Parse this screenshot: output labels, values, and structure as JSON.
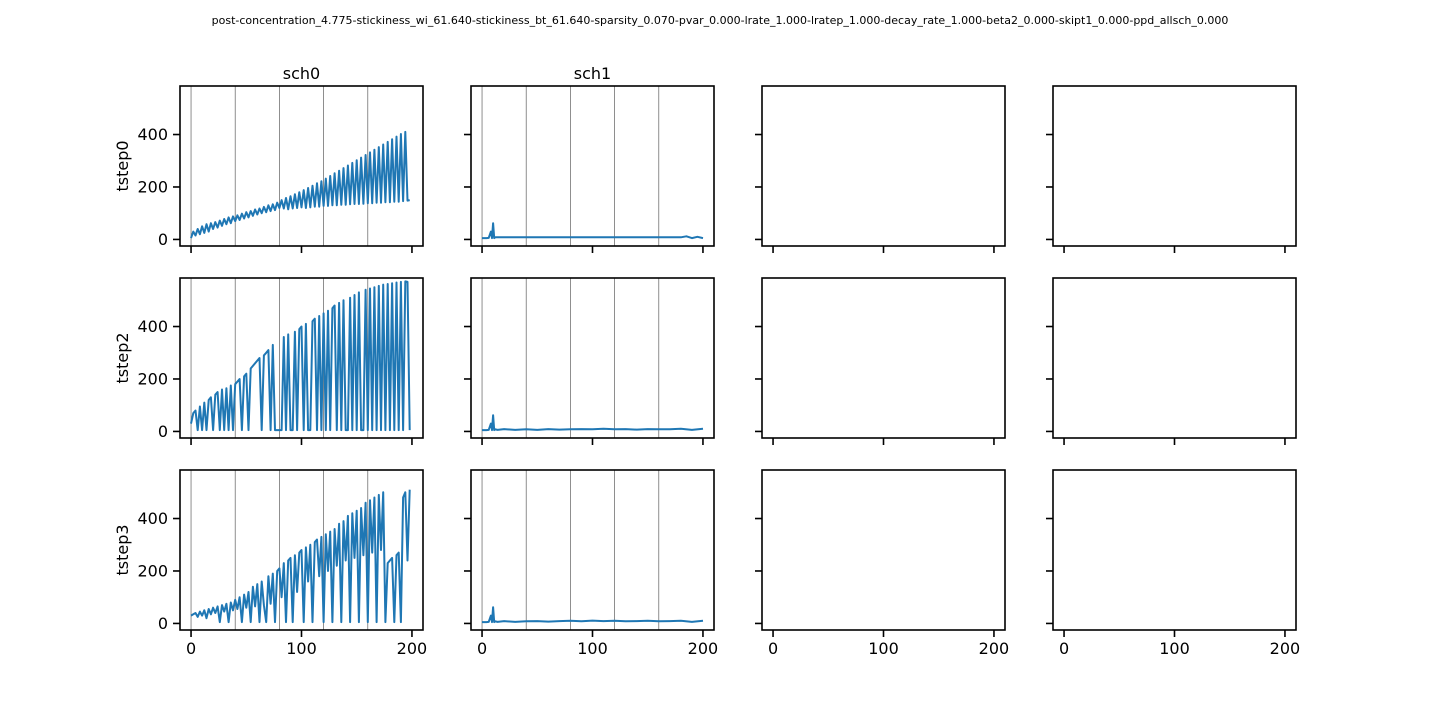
{
  "suptitle": "post-concentration_4.775-stickiness_wi_61.640-stickiness_bt_61.640-sparsity_0.070-pvar_0.000-lrate_1.000-lratep_1.000-decay_rate_1.000-beta2_0.000-skipt1_0.000-ppd_allsch_0.000",
  "colors": {
    "series": "#1f77b4",
    "axes": "#000000"
  },
  "chart_data": {
    "type": "line",
    "layout": "grid 3 rows x 4 columns, shared axes",
    "col_titles": [
      "sch0",
      "sch1",
      "",
      ""
    ],
    "row_labels": [
      "tstep0",
      "tstep2",
      "tstep3"
    ],
    "xlim": [
      -10,
      210
    ],
    "ylim": [
      -25,
      585
    ],
    "xticks": [
      0,
      100,
      200
    ],
    "xtick_labels": [
      "0",
      "100",
      "200"
    ],
    "yticks": [
      0,
      200,
      400
    ],
    "ytick_labels": [
      "0",
      "200",
      "400"
    ],
    "vertical_lines_x": [
      0,
      40,
      80,
      120,
      160
    ],
    "panels": [
      {
        "row": 0,
        "col": 0,
        "name": "tstep0-sch0",
        "x": [
          0,
          2,
          4,
          6,
          8,
          10,
          12,
          14,
          16,
          18,
          20,
          22,
          24,
          26,
          28,
          30,
          32,
          34,
          36,
          38,
          40,
          42,
          44,
          46,
          48,
          50,
          52,
          54,
          56,
          58,
          60,
          62,
          64,
          66,
          68,
          70,
          72,
          74,
          76,
          78,
          80,
          82,
          84,
          86,
          88,
          90,
          92,
          94,
          96,
          98,
          100,
          102,
          104,
          106,
          108,
          110,
          112,
          114,
          116,
          118,
          120,
          122,
          124,
          126,
          128,
          130,
          132,
          134,
          136,
          138,
          140,
          142,
          144,
          146,
          148,
          150,
          152,
          154,
          156,
          158,
          160,
          162,
          164,
          166,
          168,
          170,
          172,
          174,
          176,
          178,
          180,
          182,
          184,
          186,
          188,
          190,
          192,
          194,
          196,
          198
        ],
        "y": [
          5,
          30,
          15,
          40,
          20,
          50,
          25,
          58,
          30,
          62,
          40,
          66,
          45,
          72,
          52,
          78,
          58,
          84,
          62,
          88,
          70,
          92,
          74,
          98,
          80,
          104,
          84,
          108,
          90,
          114,
          95,
          118,
          100,
          124,
          104,
          130,
          108,
          134,
          112,
          140,
          120,
          150,
          118,
          158,
          115,
          165,
          118,
          172,
          120,
          180,
          122,
          188,
          120,
          196,
          122,
          205,
          125,
          214,
          125,
          222,
          128,
          232,
          128,
          242,
          130,
          252,
          130,
          262,
          132,
          272,
          132,
          282,
          134,
          292,
          135,
          302,
          135,
          312,
          136,
          322,
          138,
          332,
          138,
          342,
          140,
          352,
          140,
          362,
          142,
          372,
          142,
          382,
          144,
          392,
          144,
          402,
          146,
          410,
          148,
          150
        ]
      },
      {
        "row": 0,
        "col": 1,
        "name": "tstep0-sch1",
        "x": [
          0,
          2,
          4,
          6,
          8,
          9,
          10,
          11,
          12,
          14,
          20,
          30,
          40,
          50,
          60,
          70,
          80,
          90,
          100,
          110,
          120,
          130,
          140,
          150,
          160,
          170,
          180,
          185,
          190,
          195,
          200
        ],
        "y": [
          5,
          5,
          5,
          6,
          30,
          5,
          62,
          5,
          8,
          8,
          8,
          8,
          8,
          8,
          8,
          8,
          8,
          8,
          8,
          8,
          8,
          8,
          8,
          8,
          8,
          8,
          8,
          12,
          5,
          10,
          5
        ]
      },
      {
        "row": 1,
        "col": 0,
        "name": "tstep2-sch0",
        "x": [
          0,
          2,
          4,
          6,
          8,
          10,
          12,
          14,
          16,
          18,
          20,
          22,
          24,
          26,
          28,
          30,
          32,
          34,
          36,
          38,
          40,
          42,
          44,
          46,
          48,
          50,
          52,
          54,
          56,
          58,
          60,
          62,
          64,
          66,
          68,
          70,
          72,
          74,
          76,
          78,
          80,
          82,
          84,
          86,
          88,
          90,
          92,
          94,
          96,
          98,
          100,
          102,
          104,
          106,
          108,
          110,
          112,
          114,
          116,
          118,
          120,
          122,
          124,
          126,
          128,
          130,
          132,
          134,
          136,
          138,
          140,
          142,
          144,
          146,
          148,
          150,
          152,
          154,
          156,
          158,
          160,
          162,
          164,
          166,
          168,
          170,
          172,
          174,
          176,
          178,
          180,
          182,
          184,
          186,
          188,
          190,
          192,
          194,
          196,
          198
        ],
        "y": [
          30,
          70,
          80,
          5,
          95,
          5,
          110,
          5,
          120,
          130,
          5,
          140,
          150,
          5,
          160,
          5,
          165,
          5,
          175,
          5,
          180,
          190,
          200,
          5,
          210,
          220,
          5,
          240,
          250,
          260,
          270,
          280,
          5,
          290,
          300,
          310,
          5,
          330,
          5,
          5,
          5,
          5,
          360,
          5,
          370,
          5,
          5,
          380,
          5,
          390,
          400,
          5,
          410,
          5,
          5,
          420,
          430,
          5,
          440,
          5,
          450,
          5,
          460,
          5,
          470,
          480,
          5,
          490,
          5,
          500,
          5,
          5,
          510,
          5,
          520,
          5,
          530,
          5,
          5,
          540,
          5,
          545,
          5,
          550,
          5,
          555,
          5,
          560,
          5,
          562,
          5,
          565,
          5,
          568,
          5,
          570,
          5,
          572,
          570,
          5
        ]
      },
      {
        "row": 1,
        "col": 1,
        "name": "tstep2-sch1",
        "x": [
          0,
          2,
          4,
          6,
          8,
          9,
          10,
          11,
          12,
          14,
          20,
          30,
          40,
          50,
          60,
          70,
          80,
          90,
          100,
          110,
          120,
          130,
          140,
          150,
          160,
          170,
          180,
          190,
          200
        ],
        "y": [
          5,
          5,
          5,
          6,
          30,
          5,
          62,
          5,
          8,
          6,
          9,
          6,
          8,
          6,
          9,
          7,
          8,
          9,
          8,
          10,
          8,
          9,
          7,
          9,
          8,
          8,
          10,
          6,
          10
        ]
      },
      {
        "row": 2,
        "col": 0,
        "name": "tstep3-sch0",
        "x": [
          0,
          2,
          4,
          6,
          8,
          10,
          12,
          14,
          16,
          18,
          20,
          22,
          24,
          26,
          28,
          30,
          32,
          34,
          36,
          38,
          40,
          42,
          44,
          46,
          48,
          50,
          52,
          54,
          56,
          58,
          60,
          62,
          64,
          66,
          68,
          70,
          72,
          74,
          76,
          78,
          80,
          82,
          84,
          86,
          88,
          90,
          92,
          94,
          96,
          98,
          100,
          102,
          104,
          106,
          108,
          110,
          112,
          114,
          116,
          118,
          120,
          122,
          124,
          126,
          128,
          130,
          132,
          134,
          136,
          138,
          140,
          142,
          144,
          146,
          148,
          150,
          152,
          154,
          156,
          158,
          160,
          162,
          164,
          166,
          168,
          170,
          172,
          174,
          176,
          178,
          180,
          182,
          184,
          186,
          188,
          190,
          192,
          194,
          196,
          198
        ],
        "y": [
          30,
          35,
          40,
          25,
          45,
          30,
          50,
          20,
          55,
          35,
          60,
          40,
          65,
          5,
          70,
          45,
          75,
          5,
          80,
          50,
          90,
          55,
          100,
          5,
          110,
          60,
          120,
          5,
          140,
          65,
          150,
          5,
          160,
          70,
          5,
          180,
          75,
          190,
          5,
          200,
          210,
          100,
          230,
          5,
          240,
          250,
          5,
          260,
          120,
          270,
          280,
          5,
          290,
          160,
          300,
          5,
          310,
          320,
          180,
          330,
          5,
          340,
          200,
          350,
          5,
          360,
          220,
          380,
          5,
          390,
          240,
          410,
          5,
          420,
          250,
          430,
          5,
          440,
          260,
          460,
          5,
          470,
          270,
          480,
          5,
          490,
          280,
          500,
          5,
          230,
          240,
          250,
          5,
          260,
          270,
          5,
          480,
          500,
          240,
          510
        ]
      },
      {
        "row": 2,
        "col": 1,
        "name": "tstep3-sch1",
        "x": [
          0,
          2,
          4,
          6,
          8,
          9,
          10,
          11,
          12,
          14,
          20,
          30,
          40,
          50,
          60,
          70,
          80,
          90,
          100,
          110,
          120,
          130,
          140,
          150,
          160,
          170,
          180,
          190,
          200
        ],
        "y": [
          5,
          5,
          5,
          6,
          30,
          5,
          62,
          5,
          8,
          6,
          9,
          6,
          8,
          9,
          7,
          9,
          10,
          8,
          11,
          9,
          10,
          8,
          9,
          10,
          8,
          9,
          10,
          6,
          10
        ]
      }
    ]
  }
}
